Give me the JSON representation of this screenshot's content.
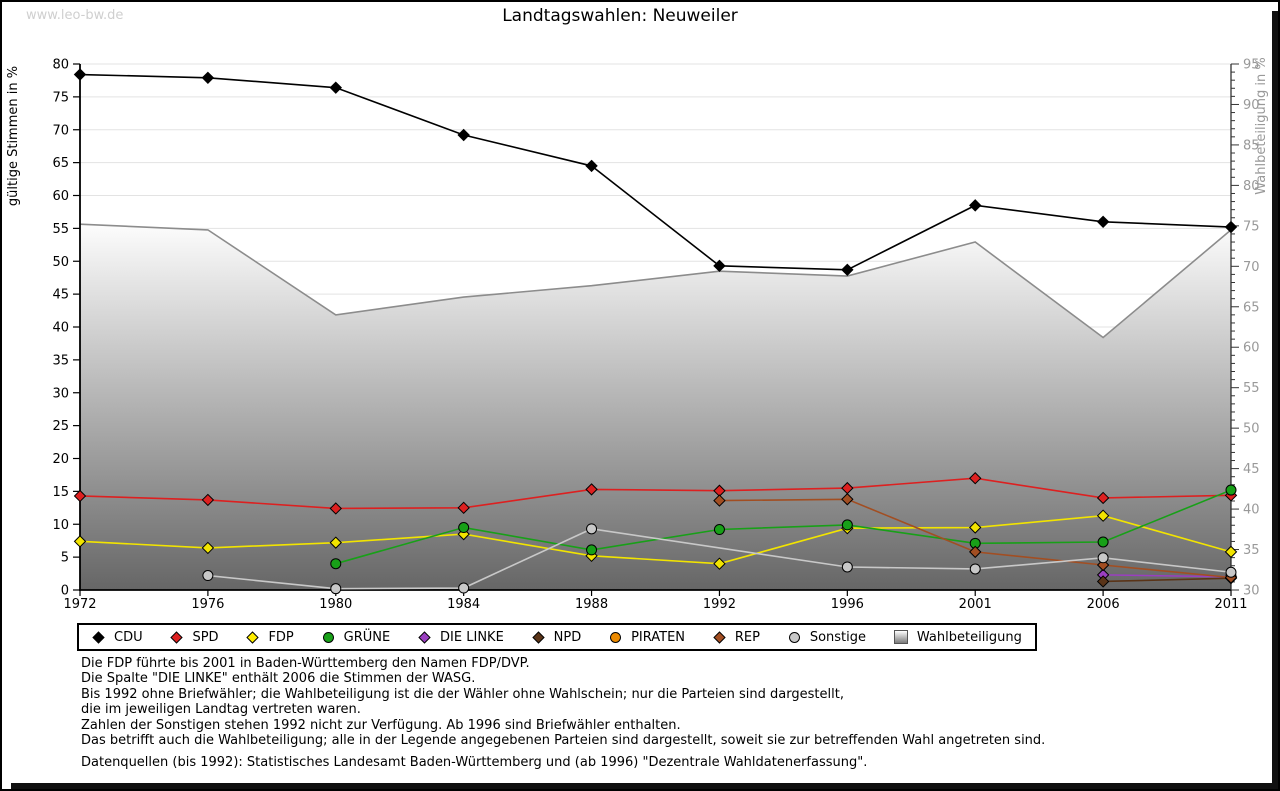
{
  "page": {
    "watermark": "www.leo-bw.de",
    "title": "Landtagswahlen: Neuweiler"
  },
  "chart_data": {
    "type": "line",
    "title": "Landtagswahlen: Neuweiler",
    "x_categories": [
      "1972",
      "1976",
      "1980",
      "1984",
      "1988",
      "1992",
      "1996",
      "2001",
      "2006",
      "2011"
    ],
    "left_axis": {
      "label": "gültige Stimmen in %",
      "min": 0,
      "max": 80,
      "step": 5
    },
    "right_axis": {
      "label": "Wahlbeteiligung in %",
      "min": 30,
      "max": 95,
      "step": 5
    },
    "grid": true,
    "series": [
      {
        "name": "CDU",
        "color": "#000000",
        "marker": "diamond",
        "axis": "left",
        "values": [
          78.4,
          77.9,
          76.4,
          69.2,
          64.5,
          49.3,
          48.7,
          58.5,
          56.0,
          55.2
        ]
      },
      {
        "name": "SPD",
        "color": "#dd2020",
        "marker": "diamond",
        "axis": "left",
        "values": [
          14.3,
          13.7,
          12.4,
          12.5,
          15.3,
          15.1,
          15.5,
          17.0,
          14.0,
          14.4
        ]
      },
      {
        "name": "FDP",
        "color": "#f2e400",
        "marker": "diamond",
        "axis": "left",
        "values": [
          7.4,
          6.4,
          7.2,
          8.5,
          5.2,
          4.0,
          9.4,
          9.5,
          11.3,
          5.8
        ]
      },
      {
        "name": "GRÜNE",
        "color": "#18a018",
        "marker": "circle",
        "axis": "left",
        "values": [
          null,
          null,
          4.0,
          9.5,
          6.1,
          9.2,
          9.9,
          7.1,
          7.3,
          15.2
        ]
      },
      {
        "name": "DIE LINKE",
        "color": "#9a3fc0",
        "marker": "diamond",
        "axis": "left",
        "values": [
          null,
          null,
          null,
          null,
          null,
          null,
          null,
          null,
          2.3,
          2.0
        ]
      },
      {
        "name": "NPD",
        "color": "#5a3418",
        "marker": "diamond",
        "axis": "left",
        "values": [
          null,
          null,
          null,
          null,
          null,
          null,
          null,
          null,
          1.3,
          1.8
        ]
      },
      {
        "name": "PIRATEN",
        "color": "#ec8a00",
        "marker": "circle",
        "axis": "left",
        "values": [
          null,
          null,
          null,
          null,
          null,
          null,
          null,
          null,
          null,
          2.1
        ]
      },
      {
        "name": "REP",
        "color": "#a24e22",
        "marker": "diamond",
        "axis": "left",
        "values": [
          null,
          null,
          null,
          null,
          null,
          13.6,
          13.8,
          5.8,
          3.8,
          1.9
        ]
      },
      {
        "name": "Sonstige",
        "color": "#c8c8c8",
        "marker": "circle",
        "axis": "left",
        "values": [
          null,
          2.2,
          0.2,
          0.3,
          9.3,
          null,
          3.5,
          3.2,
          4.9,
          2.7
        ]
      }
    ],
    "area_series": {
      "name": "Wahlbeteiligung",
      "axis": "right",
      "stroke": "#8c8c8c",
      "fill_top": "#ffffff",
      "fill_bottom": "#666666",
      "values": [
        75.2,
        74.5,
        64.0,
        66.2,
        67.6,
        69.4,
        68.8,
        73.0,
        61.2,
        74.5
      ]
    }
  },
  "legend": {
    "items": [
      {
        "label": "CDU",
        "shape": "diamond",
        "color": "#000000"
      },
      {
        "label": "SPD",
        "shape": "diamond",
        "color": "#dd2020"
      },
      {
        "label": "FDP",
        "shape": "diamond",
        "color": "#ffee00"
      },
      {
        "label": "GRÜNE",
        "shape": "circle",
        "color": "#18a018"
      },
      {
        "label": "DIE LINKE",
        "shape": "diamond",
        "color": "#9a3fc0"
      },
      {
        "label": "NPD",
        "shape": "diamond",
        "color": "#5a3418"
      },
      {
        "label": "PIRATEN",
        "shape": "circle",
        "color": "#ec8a00"
      },
      {
        "label": "REP",
        "shape": "diamond",
        "color": "#a24e22"
      },
      {
        "label": "Sonstige",
        "shape": "circle",
        "color": "#c8c8c8"
      },
      {
        "label": "Wahlbeteiligung",
        "shape": "square-gradient",
        "color": "#aaaaaa"
      }
    ]
  },
  "footnotes": {
    "lines": [
      "Die FDP führte bis 2001 in Baden-Württemberg den Namen FDP/DVP.",
      "Die Spalte \"DIE LINKE\" enthält 2006 die Stimmen der WASG.",
      "Bis 1992 ohne Briefwähler; die Wahlbeteiligung ist die der Wähler ohne Wahlschein; nur die Parteien sind dargestellt,",
      "die im jeweiligen Landtag vertreten waren.",
      "Zahlen der Sonstigen stehen 1992 nicht zur Verfügung. Ab 1996 sind Briefwähler enthalten.",
      "Das betrifft auch die Wahlbeteiligung; alle in der Legende angegebenen Parteien sind dargestellt, soweit sie zur betreffenden Wahl angetreten sind."
    ],
    "source": "Datenquellen (bis 1992): Statistisches Landesamt Baden-Württemberg und (ab 1996) \"Dezentrale Wahldatenerfassung\"."
  }
}
